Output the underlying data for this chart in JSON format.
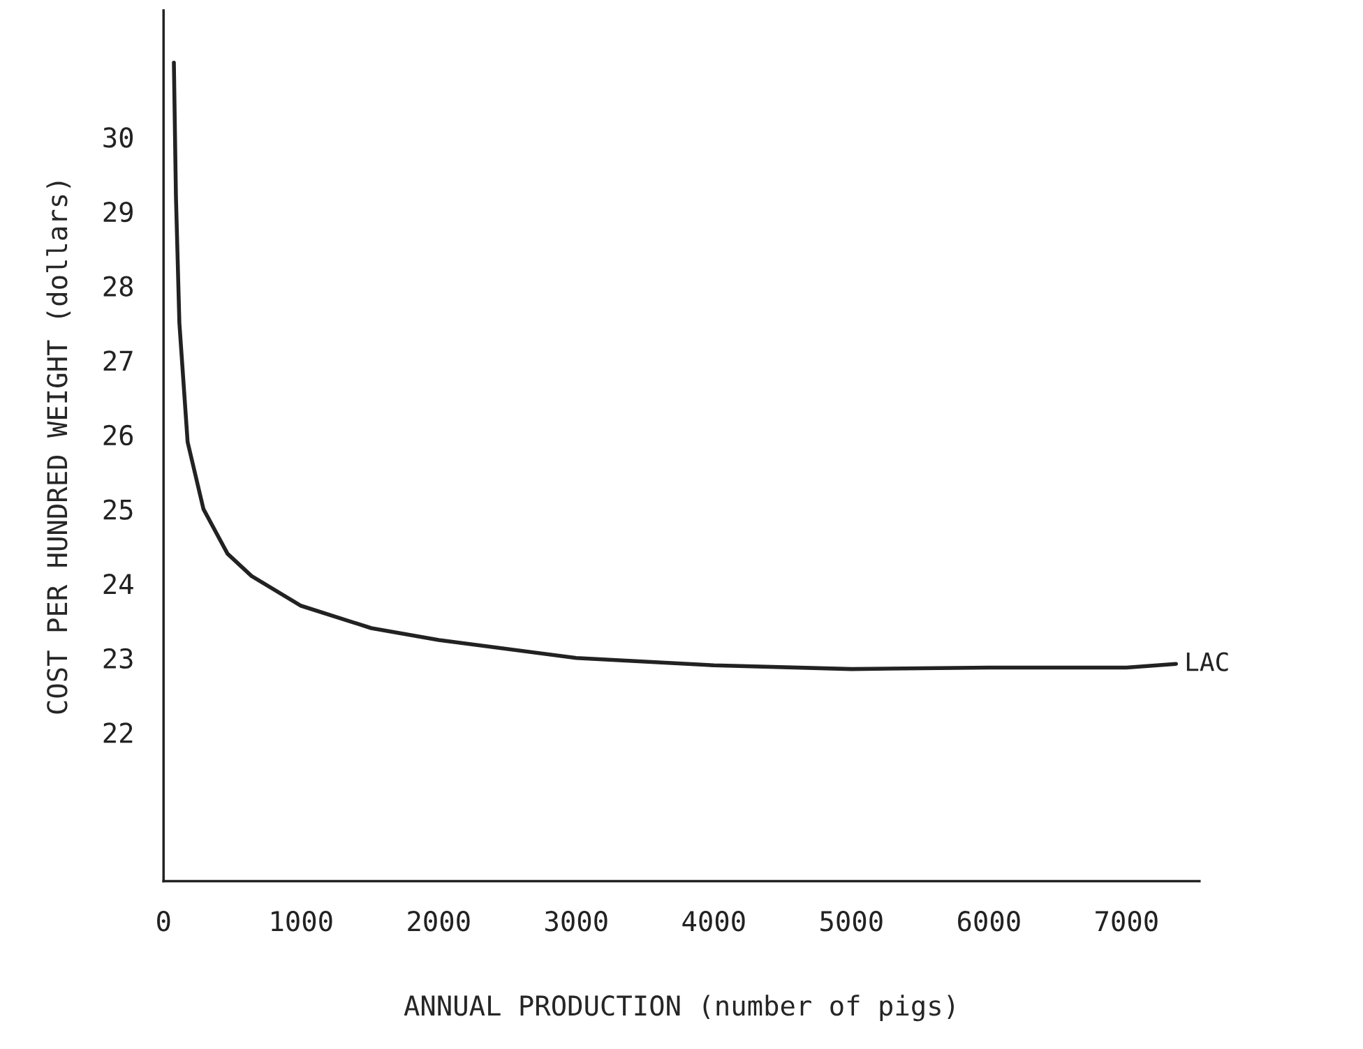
{
  "chart_data": {
    "type": "line",
    "xlabel": "ANNUAL PRODUCTION (number of pigs)",
    "ylabel": "COST PER HUNDRED WEIGHT (dollars)",
    "series": [
      {
        "name": "LAC",
        "color": "#222222",
        "x": [
          75,
          90,
          115,
          175,
          290,
          465,
          640,
          1000,
          1510,
          2000,
          3000,
          4000,
          5000,
          6000,
          7000,
          7360
        ],
        "values": [
          31.0,
          29.2,
          27.5,
          25.9,
          25.0,
          24.4,
          24.1,
          23.7,
          23.4,
          23.24,
          23.0,
          22.9,
          22.85,
          22.87,
          22.87,
          22.92
        ]
      }
    ],
    "xlim": [
      0,
      7530
    ],
    "ylim": [
      20,
      31.7
    ],
    "xticks": [
      0,
      1000,
      2000,
      3000,
      4000,
      5000,
      6000,
      7000
    ],
    "yticks": [
      22,
      23,
      24,
      25,
      26,
      27,
      28,
      29,
      30
    ],
    "grid": false,
    "legend": false,
    "marker": "none",
    "line_style": "solid"
  }
}
